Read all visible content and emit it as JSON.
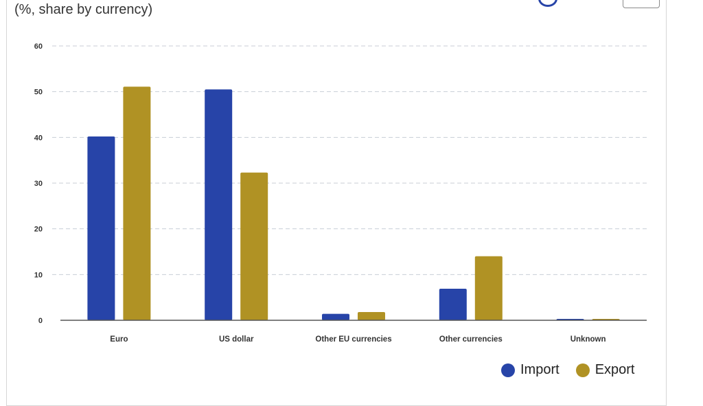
{
  "header": {
    "subtitle": "(%, share by currency)"
  },
  "chart_data": {
    "type": "bar",
    "categories": [
      "Euro",
      "US dollar",
      "Other EU currencies",
      "Other currencies",
      "Unknown"
    ],
    "series": [
      {
        "name": "Import",
        "values": [
          40.2,
          50.5,
          1.4,
          6.9,
          0.3
        ],
        "color": "#2744a8"
      },
      {
        "name": "Export",
        "values": [
          51.1,
          32.3,
          1.8,
          14.0,
          0.3
        ],
        "color": "#b09224"
      }
    ],
    "ylim": [
      0,
      60
    ],
    "yticks": [
      0,
      10,
      20,
      30,
      40,
      50,
      60
    ],
    "grid": true,
    "legend_position": "bottom-right"
  },
  "colors": {
    "import": "#2744a8",
    "export": "#b09224",
    "grid": "#c8ced6",
    "axis": "#555555"
  }
}
